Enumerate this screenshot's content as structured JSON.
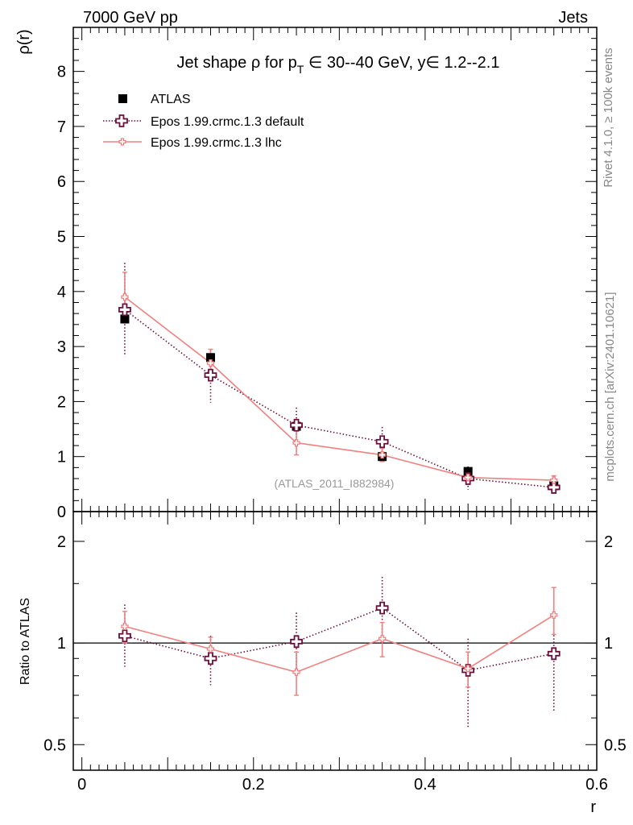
{
  "header": {
    "left": "7000 GeV pp",
    "right": "Jets"
  },
  "side_labels": {
    "rivet": "Rivet 4.1.0, ≥ 100k events",
    "mcplots": "mcplots.cern.ch [arXiv:2401.10621]"
  },
  "colors": {
    "atlas": "#000000",
    "default": "#6b0f3a",
    "lhc": "#f08080",
    "refline": "#000000",
    "watermark": "#999999"
  },
  "chart_data": [
    {
      "id": "main",
      "type": "scatter",
      "title_parts": {
        "pre": "Jet shape ",
        "rho": "ρ",
        "mid": " for p",
        "sub": "T",
        "rest": " ∈ 30--40 GeV, y∈ 1.2--2.1"
      },
      "ylabel": "ρ(r)",
      "xlabel": "",
      "xlim": [
        -0.01,
        0.6
      ],
      "ylim": [
        0,
        8.8
      ],
      "yticks": [
        0,
        1,
        2,
        3,
        4,
        5,
        6,
        7,
        8
      ],
      "ytick_labels": [
        "0",
        "1",
        "2",
        "3",
        "4",
        "5",
        "6",
        "7",
        "8"
      ],
      "watermark": "(ATLAS_2011_I882984)",
      "legend": {
        "position": "top-left",
        "entries": [
          "ATLAS",
          "Epos 1.99.crmc.1.3 default",
          "Epos 1.99.crmc.1.3 lhc"
        ]
      },
      "x": [
        0.05,
        0.15,
        0.25,
        0.35,
        0.45,
        0.55
      ],
      "series": [
        {
          "name": "ATLAS",
          "style": "marker",
          "values": [
            3.5,
            2.8,
            1.55,
            1.0,
            0.73,
            0.47
          ]
        },
        {
          "name": "Epos 1.99.crmc.1.3 default",
          "style": "dotted",
          "values": [
            3.67,
            2.48,
            1.57,
            1.27,
            0.6,
            0.44
          ],
          "err_lo": [
            0.85,
            0.5,
            0.22,
            0.27,
            0.2,
            0.12
          ],
          "err_hi": [
            0.85,
            0.45,
            0.32,
            0.27,
            0.22,
            0.15
          ]
        },
        {
          "name": "Epos 1.99.crmc.1.3 lhc",
          "style": "solid",
          "values": [
            3.9,
            2.7,
            1.25,
            1.03,
            0.62,
            0.57
          ],
          "err_lo": [
            0.45,
            0.25,
            0.22,
            0.12,
            0.08,
            0.08
          ],
          "err_hi": [
            0.45,
            0.25,
            0.22,
            0.12,
            0.08,
            0.08
          ]
        }
      ]
    },
    {
      "id": "ratio",
      "type": "scatter",
      "ylabel": "Ratio to ATLAS",
      "xlabel": "r",
      "xlim": [
        -0.01,
        0.6
      ],
      "ylim": [
        0.42,
        2.45
      ],
      "yscale": "log",
      "xticks": [
        0,
        0.2,
        0.4,
        0.6
      ],
      "xtick_labels": [
        "0",
        "0.2",
        "0.4",
        "0.6"
      ],
      "yticks": [
        0.5,
        1,
        2
      ],
      "ytick_labels": [
        "0.5",
        "1",
        "2"
      ],
      "reference_line": 1,
      "x": [
        0.05,
        0.15,
        0.25,
        0.35,
        0.45,
        0.55
      ],
      "series": [
        {
          "name": "Epos 1.99.crmc.1.3 default",
          "style": "dotted",
          "values": [
            1.05,
            0.9,
            1.01,
            1.27,
            0.83,
            0.93
          ],
          "err_lo": [
            0.2,
            0.15,
            0.18,
            0.25,
            0.27,
            0.3
          ],
          "err_hi": [
            0.25,
            0.15,
            0.22,
            0.3,
            0.2,
            0.3
          ]
        },
        {
          "name": "Epos 1.99.crmc.1.3 lhc",
          "style": "solid",
          "values": [
            1.12,
            0.96,
            0.82,
            1.03,
            0.84,
            1.21
          ],
          "err_lo": [
            0.12,
            0.08,
            0.12,
            0.12,
            0.1,
            0.15
          ],
          "err_hi": [
            0.12,
            0.08,
            0.12,
            0.12,
            0.1,
            0.25
          ]
        }
      ]
    }
  ]
}
